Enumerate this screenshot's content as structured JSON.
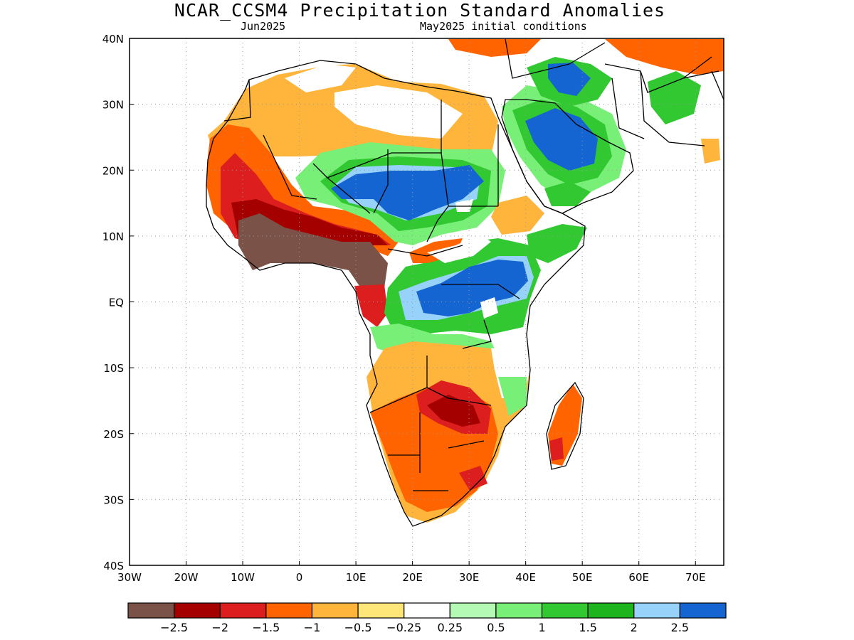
{
  "title": "NCAR_CCSM4 Precipitation Standard Anomalies",
  "subtitle_left": "Jun2025",
  "subtitle_right": "May2025 initial conditions",
  "map": {
    "lon_range": [
      -30,
      75
    ],
    "lat_range": [
      -40,
      40
    ],
    "lat_ticks": [
      {
        "value": 40,
        "label": "40N"
      },
      {
        "value": 30,
        "label": "30N"
      },
      {
        "value": 20,
        "label": "20N"
      },
      {
        "value": 10,
        "label": "10N"
      },
      {
        "value": 0,
        "label": "EQ"
      },
      {
        "value": -10,
        "label": "10S"
      },
      {
        "value": -20,
        "label": "20S"
      },
      {
        "value": -30,
        "label": "30S"
      },
      {
        "value": -40,
        "label": "40S"
      }
    ],
    "lon_ticks": [
      {
        "value": -30,
        "label": "30W"
      },
      {
        "value": -20,
        "label": "20W"
      },
      {
        "value": -10,
        "label": "10W"
      },
      {
        "value": 0,
        "label": "0"
      },
      {
        "value": 10,
        "label": "10E"
      },
      {
        "value": 20,
        "label": "20E"
      },
      {
        "value": 30,
        "label": "30E"
      },
      {
        "value": 40,
        "label": "40E"
      },
      {
        "value": 50,
        "label": "50E"
      },
      {
        "value": 60,
        "label": "60E"
      },
      {
        "value": 70,
        "label": "70E"
      }
    ],
    "grid": "dotted"
  },
  "colorbar": {
    "colors": [
      "#7a5247",
      "#a50000",
      "#dc1e1e",
      "#ff6400",
      "#ffb43c",
      "#ffe678",
      "#ffffff",
      "#b4fab4",
      "#78f078",
      "#32c832",
      "#1eb41e",
      "#96d2fa",
      "#1464d2"
    ],
    "labels": [
      "−2.5",
      "−2",
      "−1.5",
      "−1",
      "−0.5",
      "−0.25",
      "0.25",
      "0.5",
      "1",
      "1.5",
      "2",
      "2.5"
    ]
  },
  "regions": [
    {
      "name": "sahara-north-orange",
      "color": "#ffb43c"
    },
    {
      "name": "west-africa-dry",
      "color": "#ff6400"
    },
    {
      "name": "sahel-wet",
      "color": "#78f078"
    },
    {
      "name": "chad-blue",
      "color": "#1464d2"
    },
    {
      "name": "arabia-blue",
      "color": "#1464d2"
    },
    {
      "name": "guinea-brown",
      "color": "#7a5247"
    },
    {
      "name": "central-africa-green",
      "color": "#32c832"
    },
    {
      "name": "east-africa-blue",
      "color": "#1464d2"
    },
    {
      "name": "southern-africa-dry",
      "color": "#ff6400"
    },
    {
      "name": "madagascar-dry",
      "color": "#dc1e1e"
    }
  ]
}
